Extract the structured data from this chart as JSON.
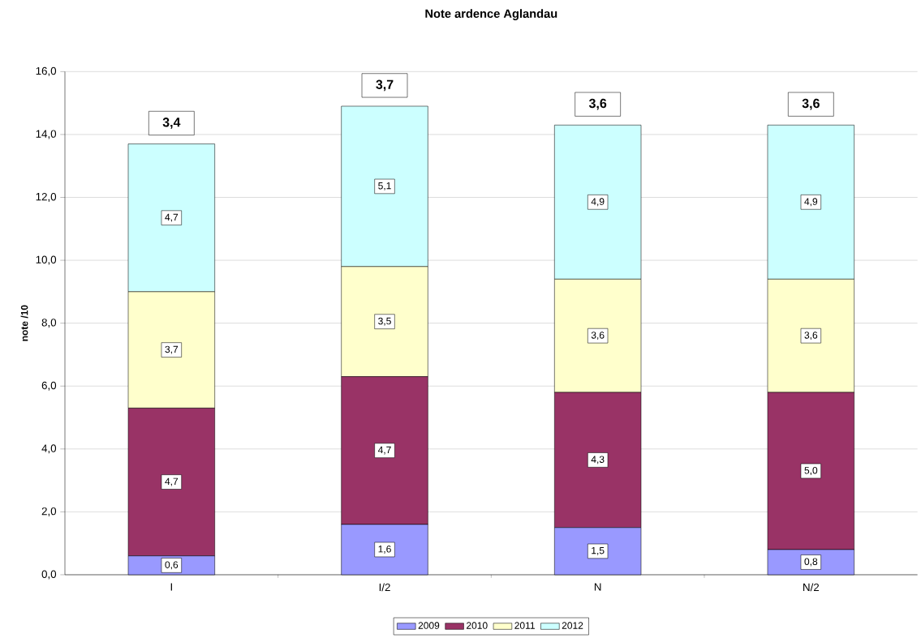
{
  "chart_data": {
    "type": "bar",
    "stacked": true,
    "title": "Note ardence Aglandau",
    "ylabel": "note /10",
    "categories": [
      "I",
      "I/2",
      "N",
      "N/2"
    ],
    "series": [
      {
        "name": "2009",
        "color": "#9999ff",
        "values": [
          0.6,
          1.6,
          1.5,
          0.8
        ],
        "value_labels": [
          "0,6",
          "1,6",
          "1,5",
          "0,8"
        ]
      },
      {
        "name": "2010",
        "color": "#993366",
        "values": [
          4.7,
          4.7,
          4.3,
          5.0
        ],
        "value_labels": [
          "4,7",
          "4,7",
          "4,3",
          "5,0"
        ]
      },
      {
        "name": "2011",
        "color": "#ffffcc",
        "values": [
          3.7,
          3.5,
          3.6,
          3.6
        ],
        "value_labels": [
          "3,7",
          "3,5",
          "3,6",
          "3,6"
        ]
      },
      {
        "name": "2012",
        "color": "#ccffff",
        "values": [
          4.7,
          5.1,
          4.9,
          4.9
        ],
        "value_labels": [
          "4,7",
          "5,1",
          "4,9",
          "4,9"
        ]
      }
    ],
    "annotations": [
      "3,4",
      "3,7",
      "3,6",
      "3,6"
    ],
    "ylim": [
      0,
      16
    ],
    "yticks": [
      {
        "value": 0,
        "label": "0,0"
      },
      {
        "value": 2,
        "label": "2,0"
      },
      {
        "value": 4,
        "label": "4,0"
      },
      {
        "value": 6,
        "label": "6,0"
      },
      {
        "value": 8,
        "label": "8,0"
      },
      {
        "value": 10,
        "label": "10,0"
      },
      {
        "value": 12,
        "label": "12,0"
      },
      {
        "value": 14,
        "label": "14,0"
      },
      {
        "value": 16,
        "label": "16,0"
      }
    ],
    "grid": "y",
    "legend": "bottom"
  }
}
